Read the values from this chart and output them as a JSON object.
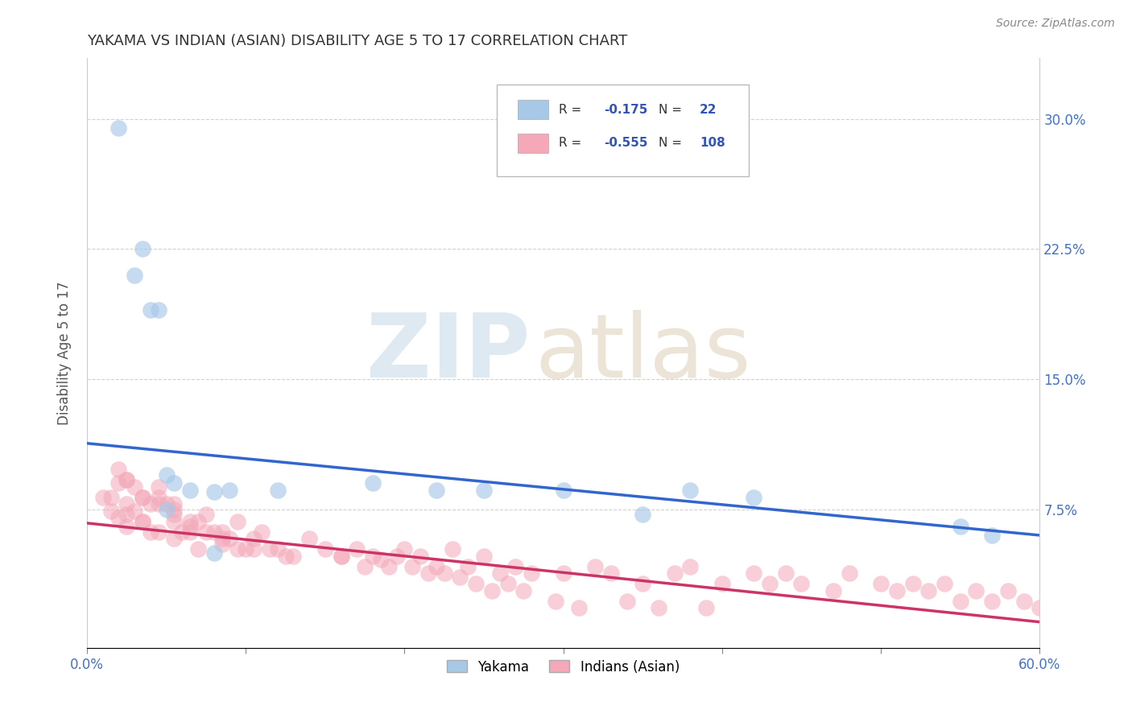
{
  "title": "YAKAMA VS INDIAN (ASIAN) DISABILITY AGE 5 TO 17 CORRELATION CHART",
  "source": "Source: ZipAtlas.com",
  "ylabel": "Disability Age 5 to 17",
  "xlim": [
    0.0,
    0.6
  ],
  "ylim": [
    -0.005,
    0.335
  ],
  "yticks": [
    0.075,
    0.15,
    0.225,
    0.3
  ],
  "ytick_labels": [
    "7.5%",
    "15.0%",
    "22.5%",
    "30.0%"
  ],
  "xticks": [
    0.0,
    0.1,
    0.2,
    0.3,
    0.4,
    0.5,
    0.6
  ],
  "xtick_labels": [
    "0.0%",
    "",
    "",
    "",
    "",
    "",
    "60.0%"
  ],
  "blue_color": "#a8c8e8",
  "pink_color": "#f4a8b8",
  "blue_line_color": "#3366cc",
  "pink_line_color": "#cc3366",
  "blue_scatter_x": [
    0.02,
    0.03,
    0.035,
    0.04,
    0.045,
    0.05,
    0.055,
    0.065,
    0.08,
    0.12,
    0.18,
    0.05,
    0.08,
    0.25,
    0.3,
    0.35,
    0.42,
    0.55,
    0.57,
    0.22,
    0.38,
    0.09
  ],
  "blue_scatter_y": [
    0.295,
    0.21,
    0.225,
    0.19,
    0.19,
    0.095,
    0.09,
    0.086,
    0.085,
    0.086,
    0.09,
    0.075,
    0.05,
    0.086,
    0.086,
    0.072,
    0.082,
    0.065,
    0.06,
    0.086,
    0.086,
    0.086
  ],
  "pink_scatter_x": [
    0.01,
    0.015,
    0.02,
    0.02,
    0.025,
    0.025,
    0.025,
    0.03,
    0.03,
    0.035,
    0.035,
    0.04,
    0.04,
    0.045,
    0.045,
    0.05,
    0.055,
    0.055,
    0.06,
    0.065,
    0.07,
    0.07,
    0.08,
    0.085,
    0.09,
    0.1,
    0.11,
    0.12,
    0.13,
    0.14,
    0.15,
    0.16,
    0.17,
    0.18,
    0.19,
    0.2,
    0.21,
    0.22,
    0.23,
    0.24,
    0.25,
    0.26,
    0.27,
    0.28,
    0.3,
    0.32,
    0.33,
    0.35,
    0.37,
    0.38,
    0.4,
    0.42,
    0.43,
    0.44,
    0.45,
    0.47,
    0.48,
    0.5,
    0.51,
    0.52,
    0.53,
    0.54,
    0.55,
    0.56,
    0.57,
    0.58,
    0.59,
    0.6,
    0.055,
    0.065,
    0.075,
    0.085,
    0.095,
    0.105,
    0.115,
    0.125,
    0.025,
    0.035,
    0.045,
    0.02,
    0.055,
    0.065,
    0.075,
    0.085,
    0.095,
    0.105,
    0.16,
    0.175,
    0.185,
    0.195,
    0.205,
    0.215,
    0.225,
    0.235,
    0.245,
    0.255,
    0.265,
    0.275,
    0.295,
    0.31,
    0.34,
    0.36,
    0.39,
    0.015,
    0.025,
    0.035,
    0.045,
    0.055
  ],
  "pink_scatter_y": [
    0.082,
    0.074,
    0.09,
    0.07,
    0.092,
    0.078,
    0.065,
    0.088,
    0.074,
    0.082,
    0.068,
    0.078,
    0.062,
    0.082,
    0.062,
    0.078,
    0.068,
    0.058,
    0.062,
    0.065,
    0.068,
    0.052,
    0.062,
    0.055,
    0.058,
    0.052,
    0.062,
    0.052,
    0.048,
    0.058,
    0.052,
    0.048,
    0.052,
    0.048,
    0.042,
    0.052,
    0.048,
    0.042,
    0.052,
    0.042,
    0.048,
    0.038,
    0.042,
    0.038,
    0.038,
    0.042,
    0.038,
    0.032,
    0.038,
    0.042,
    0.032,
    0.038,
    0.032,
    0.038,
    0.032,
    0.028,
    0.038,
    0.032,
    0.028,
    0.032,
    0.028,
    0.032,
    0.022,
    0.028,
    0.022,
    0.028,
    0.022,
    0.018,
    0.072,
    0.062,
    0.072,
    0.062,
    0.068,
    0.058,
    0.052,
    0.048,
    0.092,
    0.082,
    0.088,
    0.098,
    0.078,
    0.068,
    0.062,
    0.058,
    0.052,
    0.052,
    0.048,
    0.042,
    0.046,
    0.048,
    0.042,
    0.038,
    0.038,
    0.036,
    0.032,
    0.028,
    0.032,
    0.028,
    0.022,
    0.018,
    0.022,
    0.018,
    0.018,
    0.082,
    0.072,
    0.068,
    0.078,
    0.075
  ],
  "blue_line_x": [
    0.0,
    0.6
  ],
  "blue_line_y": [
    0.113,
    0.06
  ],
  "pink_line_x": [
    0.0,
    0.6
  ],
  "pink_line_y": [
    0.067,
    0.01
  ],
  "background_color": "#ffffff",
  "grid_color": "#cccccc",
  "title_color": "#333333",
  "axis_label_color": "#4472c4"
}
